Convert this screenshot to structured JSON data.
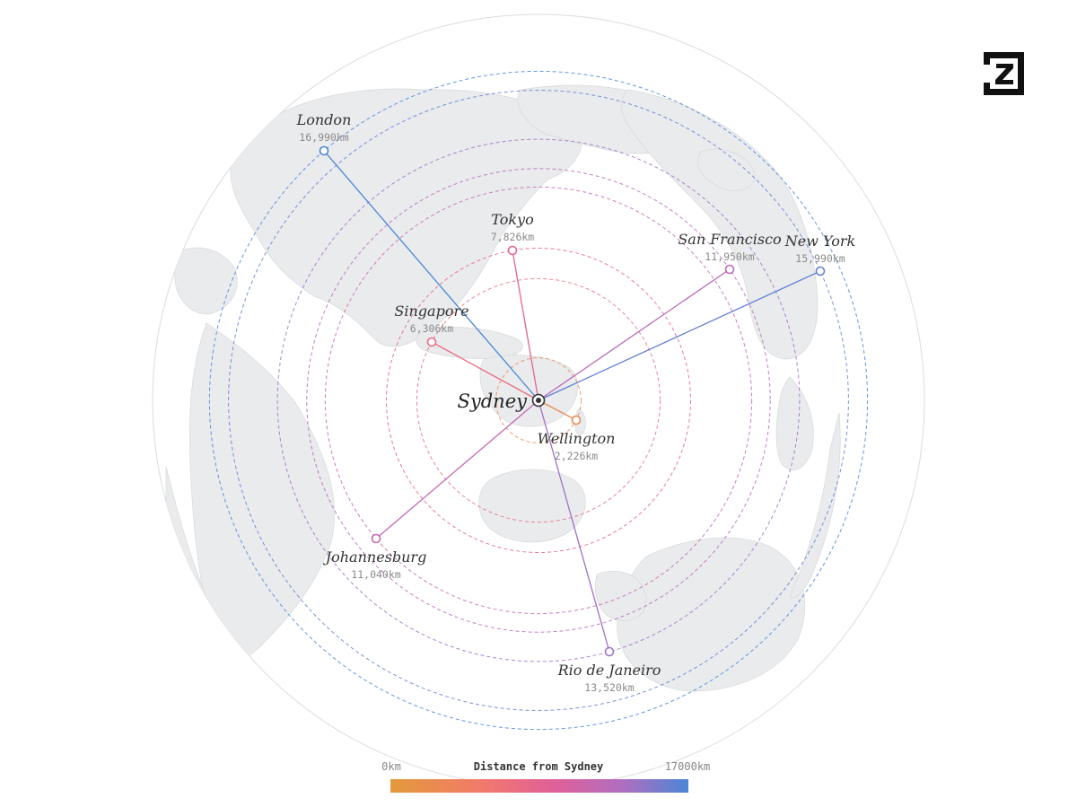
{
  "origin": {
    "name": "Sydney"
  },
  "cities": [
    {
      "name": "London",
      "distance_km": 16990,
      "distance_label": "16,990km"
    },
    {
      "name": "Tokyo",
      "distance_km": 7826,
      "distance_label": "7,826km"
    },
    {
      "name": "San Francisco",
      "distance_km": 11950,
      "distance_label": "11,950km"
    },
    {
      "name": "New York",
      "distance_km": 15990,
      "distance_label": "15,990km"
    },
    {
      "name": "Singapore",
      "distance_km": 6306,
      "distance_label": "6,306km"
    },
    {
      "name": "Wellington",
      "distance_km": 2226,
      "distance_label": "2,226km"
    },
    {
      "name": "Johannesburg",
      "distance_km": 11040,
      "distance_label": "11,040km"
    },
    {
      "name": "Rio de Janeiro",
      "distance_km": 13520,
      "distance_label": "13,520km"
    }
  ],
  "legend": {
    "title": "Distance from Sydney",
    "min_label": "0km",
    "max_label": "17000km",
    "min_km": 0,
    "max_km": 17000,
    "gradient_colors": [
      "#e39a3a",
      "#f27a6a",
      "#e0609a",
      "#b06ec0",
      "#4a86d8"
    ]
  },
  "logo": {
    "name": "Z"
  },
  "colors": {
    "land": "#e9eaec",
    "globe_edge": "#dcdcdc"
  }
}
